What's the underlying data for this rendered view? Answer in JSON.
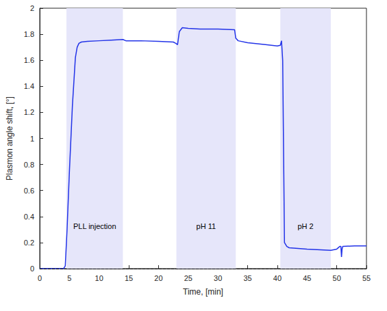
{
  "chart_data": {
    "type": "line",
    "x_label": "Time, [min]",
    "y_label": "Plasmon angle shift, [°]",
    "xlim": [
      0,
      55
    ],
    "xticks": [
      0,
      5,
      10,
      15,
      20,
      25,
      30,
      35,
      40,
      45,
      50,
      55
    ],
    "ylim": [
      0,
      2
    ],
    "yticks": [
      0,
      0.2,
      0.4,
      0.6,
      0.8,
      1,
      1.2,
      1.4,
      1.6,
      1.8,
      2
    ],
    "grid": false,
    "color": "#2233e8",
    "x": [
      0,
      2,
      4,
      4.3,
      4.6,
      5,
      5.5,
      6,
      6.3,
      6.6,
      7,
      8,
      10,
      12,
      14,
      14.5,
      17,
      20,
      22.5,
      22.9,
      23.2,
      23.5,
      24,
      25,
      27,
      30,
      32.8,
      33,
      33.4,
      35,
      38,
      40,
      40.5,
      40.7,
      40.9,
      41.2,
      41.6,
      42,
      45,
      49,
      50,
      50.5,
      50.7,
      50.8,
      50.9,
      51,
      53,
      55
    ],
    "values": [
      0,
      0,
      0,
      0.02,
      0.3,
      0.75,
      1.25,
      1.62,
      1.7,
      1.73,
      1.74,
      1.745,
      1.75,
      1.755,
      1.76,
      1.75,
      1.75,
      1.745,
      1.74,
      1.73,
      1.72,
      1.82,
      1.85,
      1.845,
      1.84,
      1.84,
      1.835,
      1.77,
      1.75,
      1.735,
      1.72,
      1.71,
      1.715,
      1.75,
      1.6,
      0.2,
      0.17,
      0.16,
      0.15,
      0.14,
      0.15,
      0.17,
      0.17,
      0.09,
      0.15,
      0.17,
      0.175,
      0.175
    ],
    "regions": [
      {
        "start": 4.5,
        "end": 14,
        "label": "PLL injection",
        "color": "#e6e6fa"
      },
      {
        "start": 23,
        "end": 33,
        "label": "pH 11",
        "color": "#e6e6fa"
      },
      {
        "start": 40.5,
        "end": 49,
        "label": "pH 2",
        "color": "#e6e6fa"
      }
    ],
    "hlines": [
      {
        "y": 0,
        "line_style": "dashed",
        "color": "#000000"
      }
    ]
  }
}
